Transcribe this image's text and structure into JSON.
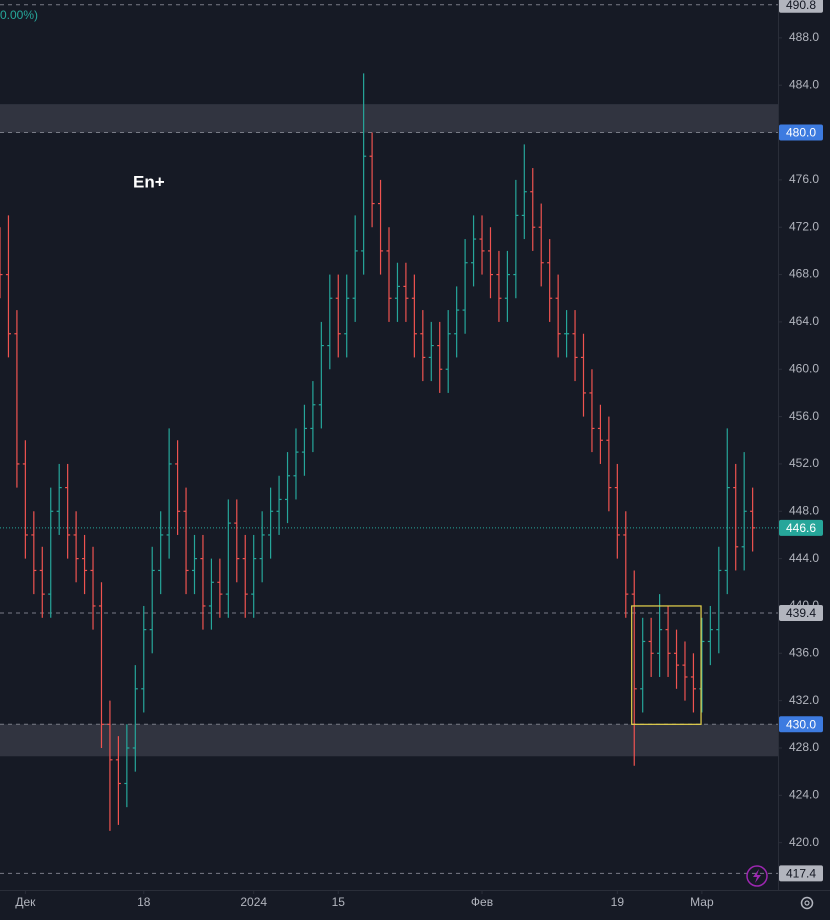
{
  "chart_data": {
    "type": "ohlc",
    "title": "En+",
    "legend_fragment": "0.00%)",
    "up_color": "#26a69a",
    "down_color": "#ef5350",
    "xlim": [
      0,
      92
    ],
    "xticks": [
      {
        "value": 3,
        "label": "Дек"
      },
      {
        "value": 17,
        "label": "18"
      },
      {
        "value": 30,
        "label": "2024"
      },
      {
        "value": 40,
        "label": "15"
      },
      {
        "value": 57,
        "label": "Фев"
      },
      {
        "value": 73,
        "label": "19"
      },
      {
        "value": 83,
        "label": "Мар"
      }
    ],
    "ylim": [
      416.0,
      491.2
    ],
    "yticks": [
      {
        "value": 420,
        "label": "420.0"
      },
      {
        "value": 424,
        "label": "424.0"
      },
      {
        "value": 428,
        "label": "428.0"
      },
      {
        "value": 432,
        "label": "432.0"
      },
      {
        "value": 436,
        "label": "436.0"
      },
      {
        "value": 440,
        "label": "440.0"
      },
      {
        "value": 444,
        "label": "444.0"
      },
      {
        "value": 448,
        "label": "448.0"
      },
      {
        "value": 452,
        "label": "452.0"
      },
      {
        "value": 456,
        "label": "456.0"
      },
      {
        "value": 460,
        "label": "460.0"
      },
      {
        "value": 464,
        "label": "464.0"
      },
      {
        "value": 468,
        "label": "468.0"
      },
      {
        "value": 472,
        "label": "472.0"
      },
      {
        "value": 476,
        "label": "476.0"
      },
      {
        "value": 480,
        "label": "480.0"
      },
      {
        "value": 484,
        "label": "484.0"
      },
      {
        "value": 488,
        "label": "488.0"
      }
    ],
    "open": [
      470,
      468,
      463,
      452,
      446,
      443,
      441,
      448,
      450,
      446,
      444,
      443,
      440,
      430,
      427,
      425,
      428,
      433,
      438,
      443,
      446,
      452,
      448,
      443,
      444,
      440,
      442,
      441,
      447,
      444,
      441,
      444,
      446,
      448,
      449,
      451,
      453,
      455,
      457,
      462,
      466,
      463,
      466,
      470,
      478,
      474,
      470,
      466,
      467,
      466,
      463,
      461,
      462,
      460,
      463,
      465,
      469,
      471,
      470,
      468,
      466,
      468,
      473,
      475,
      472,
      469,
      466,
      463,
      463,
      461,
      458,
      455,
      454,
      450,
      446,
      441,
      433,
      437,
      436,
      438,
      436,
      435,
      434,
      433,
      437,
      438,
      443,
      450,
      445,
      448
    ],
    "high": [
      472,
      473,
      465,
      454,
      448,
      445,
      450,
      452,
      452,
      448,
      446,
      445,
      442,
      432,
      429,
      430,
      435,
      440,
      445,
      448,
      455,
      454,
      450,
      446,
      446,
      444,
      444,
      449,
      449,
      446,
      446,
      448,
      450,
      451,
      453,
      455,
      457,
      459,
      464,
      468,
      468,
      468,
      473,
      485,
      480,
      476,
      472,
      469,
      469,
      468,
      465,
      464,
      464,
      465,
      467,
      471,
      473,
      473,
      472,
      470,
      470,
      476,
      479,
      477,
      474,
      471,
      468,
      465,
      465,
      463,
      460,
      457,
      456,
      452,
      448,
      443,
      439,
      439,
      441,
      440,
      438,
      437,
      436,
      439,
      440,
      445,
      455,
      452,
      453,
      450
    ],
    "low": [
      466,
      461,
      450,
      444,
      441,
      439,
      439,
      446,
      444,
      442,
      441,
      438,
      428,
      421,
      421.5,
      423,
      426,
      431,
      436,
      441,
      444,
      446,
      441,
      441,
      438,
      438,
      439,
      439,
      442,
      439,
      439,
      442,
      444,
      446,
      447,
      449,
      451,
      453,
      455,
      460,
      461,
      461,
      464,
      468,
      472,
      468,
      464,
      464,
      464,
      461,
      459,
      459,
      458,
      458,
      461,
      463,
      467,
      468,
      466,
      464,
      464,
      466,
      471,
      470,
      467,
      464,
      461,
      461,
      459,
      456,
      453,
      452,
      448,
      444,
      439,
      426.5,
      431,
      434,
      434,
      434,
      433,
      432,
      431,
      431,
      435,
      436,
      441,
      443,
      443,
      444.6
    ],
    "close": [
      468,
      463,
      452,
      446,
      443,
      441,
      448,
      450,
      446,
      444,
      443,
      440,
      430,
      427,
      425,
      428,
      433,
      438,
      443,
      446,
      452,
      448,
      443,
      444,
      440,
      442,
      441,
      447,
      444,
      441,
      444,
      446,
      448,
      449,
      451,
      453,
      455,
      457,
      462,
      466,
      463,
      466,
      470,
      478,
      474,
      470,
      466,
      467,
      466,
      463,
      461,
      462,
      460,
      463,
      465,
      469,
      471,
      470,
      468,
      466,
      468,
      473,
      475,
      472,
      469,
      466,
      463,
      463,
      461,
      458,
      455,
      454,
      450,
      446,
      441,
      433,
      437,
      436,
      438,
      436,
      435,
      434,
      433,
      437,
      438,
      443,
      450,
      445,
      448,
      446.6
    ],
    "zones": [
      {
        "from": 480,
        "to": 482.4
      },
      {
        "from": 427.3,
        "to": 430
      }
    ],
    "box": {
      "x": [
        74.7,
        82.9
      ],
      "y": [
        430,
        440
      ],
      "color": "#e8d44d"
    },
    "price_lines": [
      {
        "value": 490.8,
        "label": "490.8",
        "style": "dashed",
        "color": "#b2b5be",
        "tag_text": "#131722"
      },
      {
        "value": 480,
        "label": "480.0",
        "style": "dashed",
        "color": "#3d7be0",
        "tag_text": "#ffffff"
      },
      {
        "value": 446.6,
        "label": "446.6",
        "style": "dotted",
        "color": "#26a69a",
        "tag_text": "#ffffff"
      },
      {
        "value": 439.4,
        "label": "439.4",
        "style": "dashed",
        "color": "#b2b5be",
        "tag_text": "#131722"
      },
      {
        "value": 430,
        "label": "430.0",
        "style": "dashed",
        "color": "#3d7be0",
        "tag_text": "#ffffff"
      },
      {
        "value": 417.4,
        "label": "417.4",
        "style": "dashed",
        "color": "#b2b5be",
        "tag_text": "#131722"
      }
    ]
  }
}
